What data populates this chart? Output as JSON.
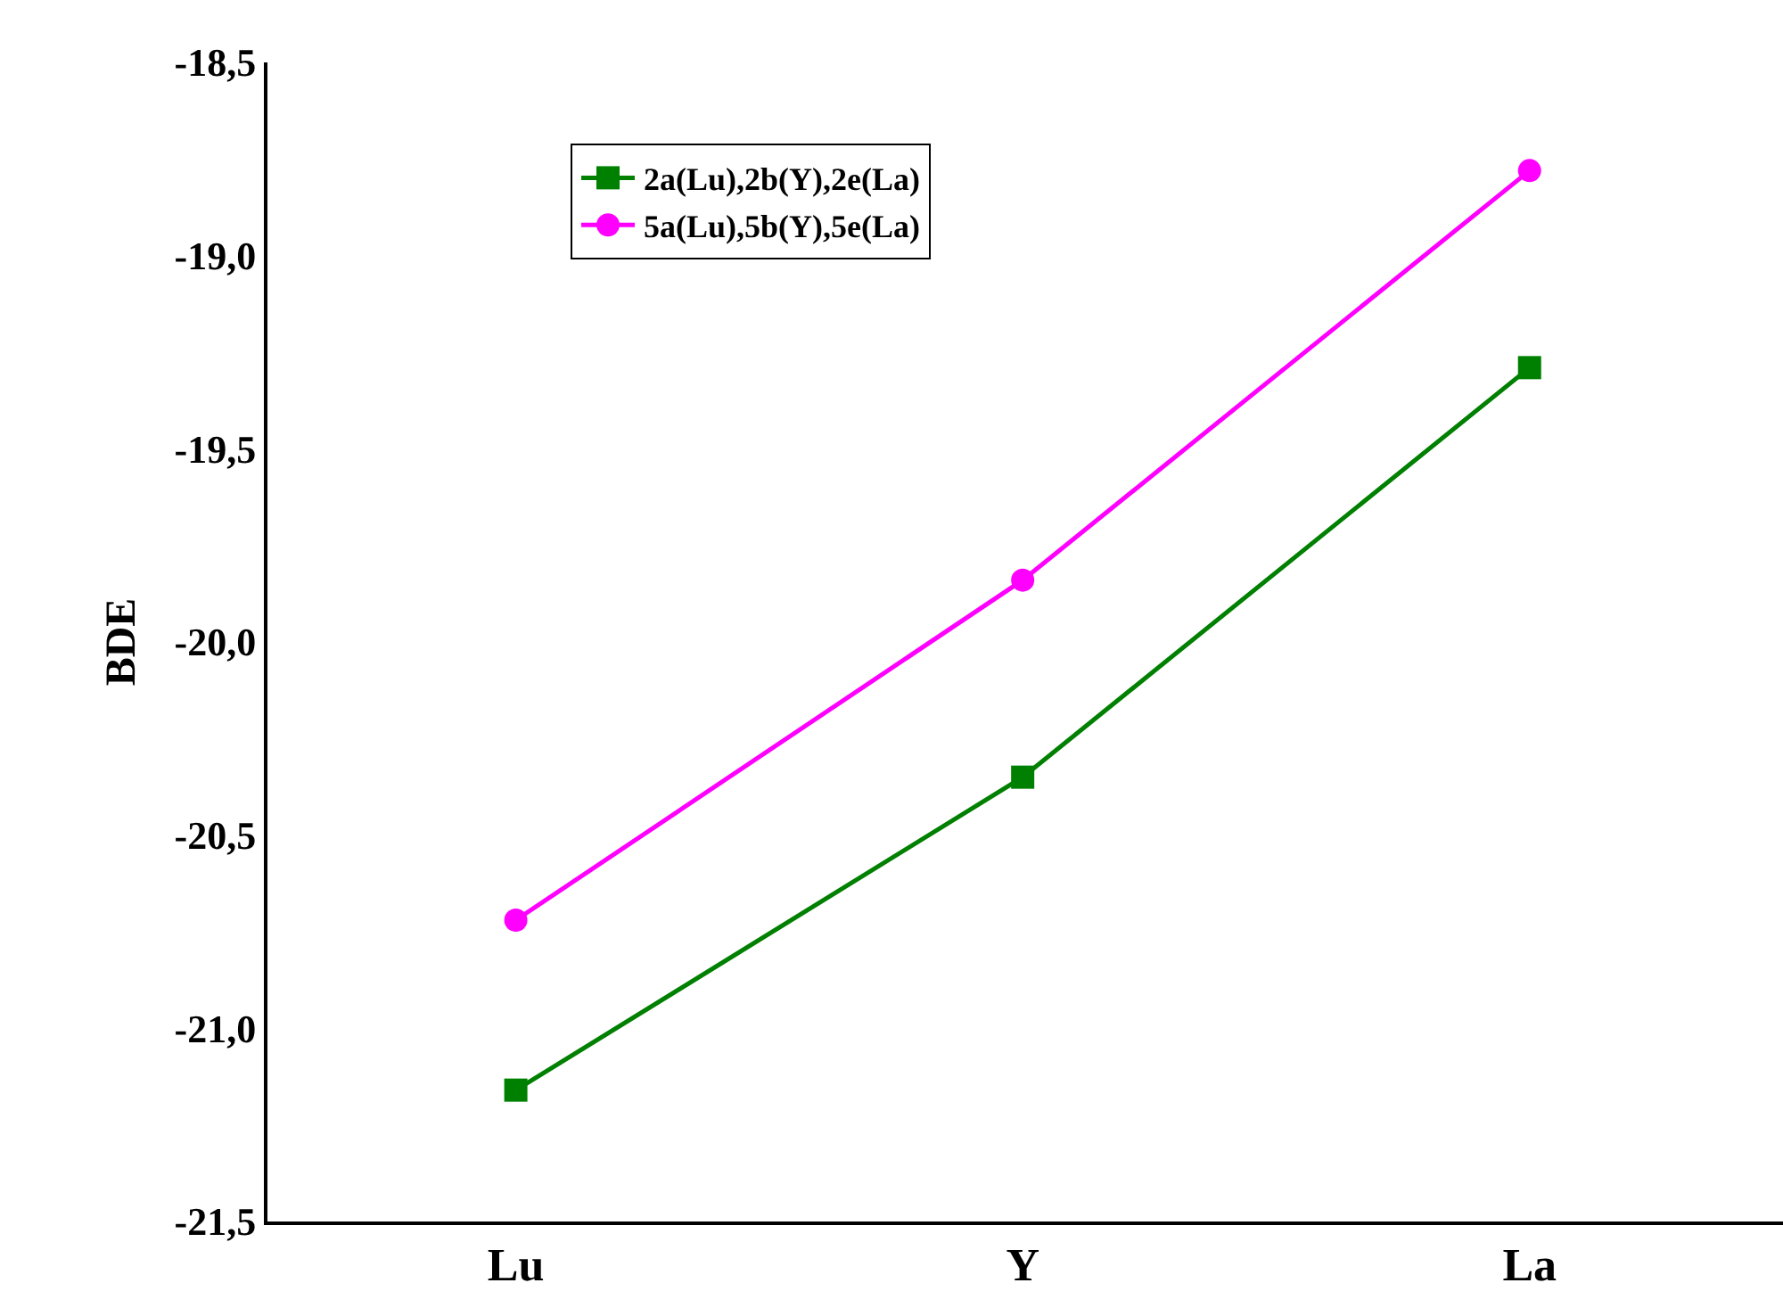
{
  "chart_data": {
    "type": "line",
    "ylabel": "BDE",
    "categories": [
      "Lu",
      "Y",
      "La"
    ],
    "series": [
      {
        "name": "2a(Lu),2b(Y),2e(La)",
        "color": "#008000",
        "values": [
          -21.16,
          -20.35,
          -19.29
        ],
        "marker": "square"
      },
      {
        "name": "5a(Lu),5b(Y),5e(La)",
        "color": "#ff00ff",
        "values": [
          -20.72,
          -19.84,
          -18.78
        ],
        "marker": "circle"
      }
    ],
    "ylim": [
      -21.5,
      -18.5
    ],
    "yticks": [
      {
        "value": -21.5,
        "label": "-21,5"
      },
      {
        "value": -21.0,
        "label": "-21,0"
      },
      {
        "value": -20.5,
        "label": "-20,5"
      },
      {
        "value": -20.0,
        "label": "-20,0"
      },
      {
        "value": -19.5,
        "label": "-19,5"
      },
      {
        "value": -19.0,
        "label": "-19,0"
      },
      {
        "value": -18.5,
        "label": "-18,5"
      }
    ],
    "legend": "top left",
    "line_style": "solid"
  }
}
